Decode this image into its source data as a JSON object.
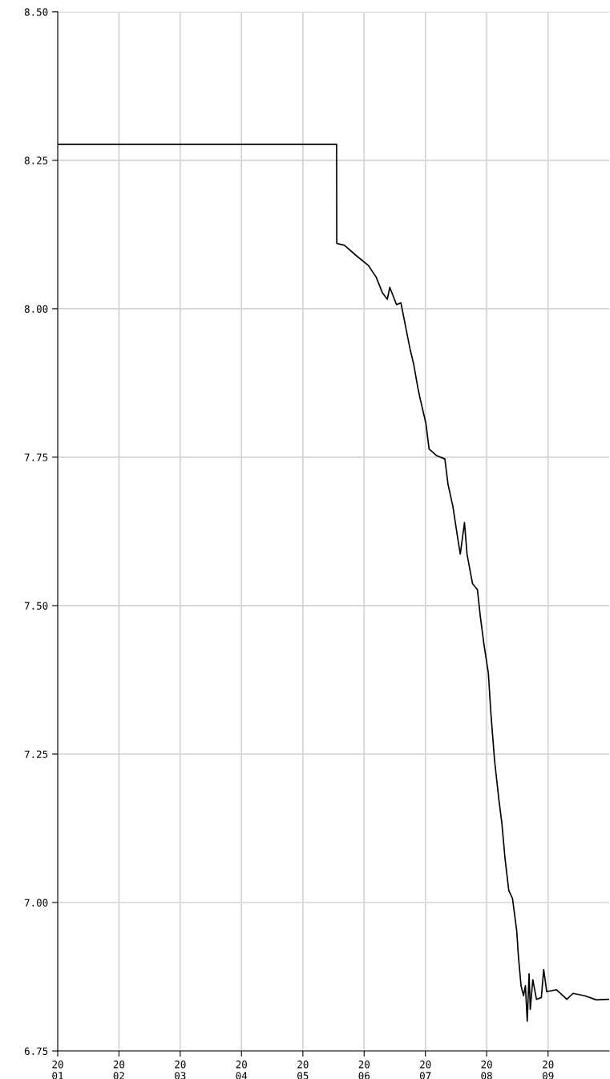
{
  "chart_data": {
    "type": "line",
    "x": [
      "2001-01-01",
      "2005-07-21",
      "2005-07-22",
      "2005-09-05",
      "2005-11-13",
      "2006-01-26",
      "2006-03-14",
      "2006-04-20",
      "2006-05-19",
      "2006-06-03",
      "2006-07-13",
      "2006-08-08",
      "2006-08-29",
      "2006-10-01",
      "2006-10-23",
      "2006-11-17",
      "2006-12-02",
      "2007-01-04",
      "2007-01-23",
      "2007-03-07",
      "2007-04-27",
      "2007-05-16",
      "2007-06-14",
      "2007-07-13",
      "2007-07-28",
      "2007-08-22",
      "2007-09-06",
      "2007-10-09",
      "2007-11-07",
      "2007-11-25",
      "2007-12-17",
      "2008-01-11",
      "2008-01-26",
      "2008-02-17",
      "2008-03-14",
      "2008-04-01",
      "2008-04-20",
      "2008-05-12",
      "2008-06-03",
      "2008-06-28",
      "2008-07-09",
      "2008-07-24",
      "2008-08-08",
      "2008-08-19",
      "2008-08-30",
      "2008-09-10",
      "2008-09-17",
      "2008-10-02",
      "2008-10-24",
      "2008-11-22",
      "2008-12-06",
      "2008-12-24",
      "2009-02-21",
      "2009-04-23",
      "2009-05-30",
      "2009-08-08",
      "2009-10-16",
      "2009-12-28"
    ],
    "series": [
      {
        "color": "#000000",
        "values": [
          8.277,
          8.277,
          8.11,
          8.107,
          8.09,
          8.073,
          8.053,
          8.027,
          8.016,
          8.036,
          8.007,
          8.01,
          7.98,
          7.933,
          7.907,
          7.867,
          7.847,
          7.807,
          7.764,
          7.753,
          7.747,
          7.704,
          7.667,
          7.613,
          7.587,
          7.64,
          7.587,
          7.537,
          7.527,
          7.48,
          7.433,
          7.387,
          7.32,
          7.24,
          7.173,
          7.133,
          7.073,
          7.02,
          7.007,
          6.953,
          6.907,
          6.86,
          6.843,
          6.86,
          6.8,
          6.88,
          6.82,
          6.87,
          6.837,
          6.84,
          6.887,
          6.85,
          6.853,
          6.837,
          6.847,
          6.843,
          6.836,
          6.837
        ]
      }
    ],
    "xlim": [
      "2001-01-01",
      "2009-12-31"
    ],
    "xticks": [
      {
        "value": "2001-01-01",
        "label": "20\n01"
      },
      {
        "value": "2002-01-01",
        "label": "20\n02"
      },
      {
        "value": "2003-01-01",
        "label": "20\n03"
      },
      {
        "value": "2004-01-01",
        "label": "20\n04"
      },
      {
        "value": "2005-01-01",
        "label": "20\n05"
      },
      {
        "value": "2006-01-01",
        "label": "20\n06"
      },
      {
        "value": "2007-01-01",
        "label": "20\n07"
      },
      {
        "value": "2008-01-01",
        "label": "20\n08"
      },
      {
        "value": "2009-01-01",
        "label": "20\n09"
      }
    ],
    "ylim": [
      6.75,
      8.5
    ],
    "yticks": [
      {
        "value": 6.75,
        "label": "6.75"
      },
      {
        "value": 7.0,
        "label": "7.00"
      },
      {
        "value": 7.25,
        "label": "7.25"
      },
      {
        "value": 7.5,
        "label": "7.50"
      },
      {
        "value": 7.75,
        "label": "7.75"
      },
      {
        "value": 8.0,
        "label": "8.00"
      },
      {
        "value": 8.25,
        "label": "8.25"
      },
      {
        "value": 8.5,
        "label": "8.50"
      }
    ],
    "grid": true,
    "legend": false
  }
}
